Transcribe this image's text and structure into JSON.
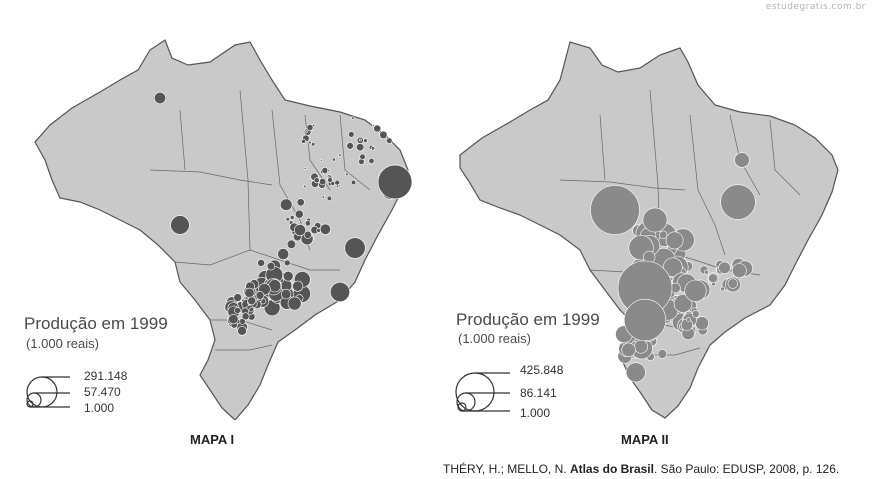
{
  "watermark": "estudegratis.com.br",
  "maps": [
    {
      "caption": "MAPA I",
      "legend_title": "Produção em 1999",
      "legend_unit": "(1.000 reais)",
      "legend_values": [
        "291.148",
        "57.470",
        "1.000"
      ],
      "symbol_color": "#555555"
    },
    {
      "caption": "MAPA II",
      "legend_title": "Produção em 1999",
      "legend_unit": "(1.000 reais)",
      "legend_values": [
        "425.848",
        "86.141",
        "1.000"
      ],
      "symbol_color": "#8a8a8a"
    }
  ],
  "source": {
    "authors": "THÉRY, H.; MELLO, N.",
    "title": "Atlas do Brasil",
    "rest": ". São Paulo: EDUSP, 2008, p. 126."
  },
  "colors": {
    "land": "#c9c9c9",
    "border": "#555555"
  }
}
